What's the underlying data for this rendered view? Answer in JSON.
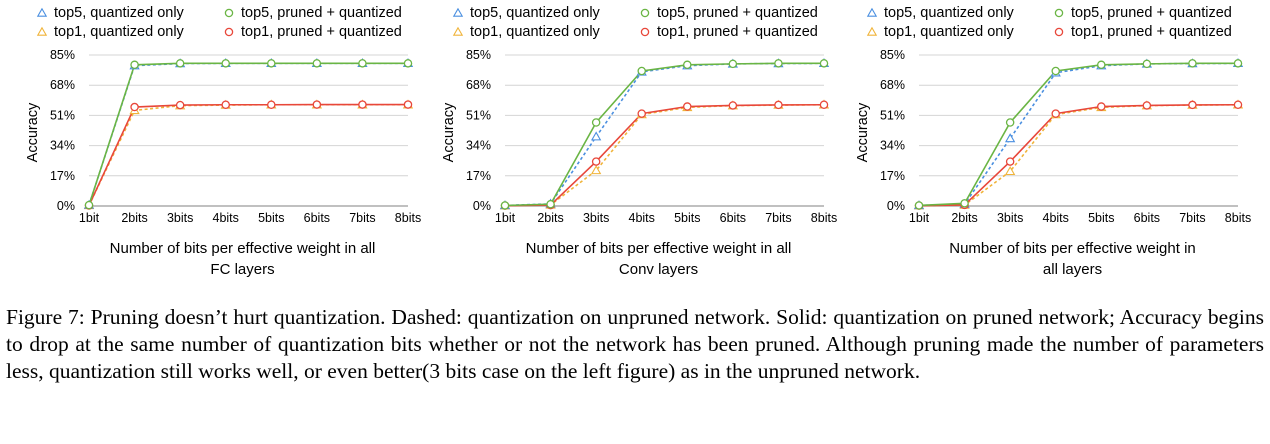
{
  "figure": {
    "caption": "Figure 7: Pruning doesn’t hurt quantization. Dashed: quantization on unpruned network. Solid: quantization on pruned network; Accuracy begins to drop at the same number of quantization bits whether or not the network has been pruned. Although pruning made the number of parameters less, quantization still works well, or even better(3 bits case on the left figure) as in the unpruned network."
  },
  "colors": {
    "top5": "#4fb0c6",
    "top5_quant": "#4a8fe0",
    "green": "#6ab544",
    "top1_quant": "#f0b43a",
    "red": "#e8473a",
    "axis": "#9a9a9a",
    "grid": "#d4d4d4"
  },
  "chart_data": [
    {
      "type": "line",
      "title": "",
      "xlabel": "Number of bits per effective weight in all FC layers",
      "xlabel_lines": [
        "Number of bits per effective weight in all",
        "FC layers"
      ],
      "ylabel": "Accuracy",
      "categories": [
        "1bit",
        "2bits",
        "3bits",
        "4bits",
        "5bits",
        "6bits",
        "7bits",
        "8bits"
      ],
      "yticks": [
        "0%",
        "17%",
        "34%",
        "51%",
        "68%",
        "85%"
      ],
      "ylim": [
        0,
        85
      ],
      "grid": true,
      "legend_position": "top",
      "series": [
        {
          "name": "top5, quantized only",
          "values": [
            0.5,
            79.0,
            80.2,
            80.3,
            80.3,
            80.3,
            80.3,
            80.3
          ],
          "style": "dashed",
          "marker": "triangle",
          "color_key": "top5_quant"
        },
        {
          "name": "top5, pruned + quantized",
          "values": [
            0.5,
            79.5,
            80.3,
            80.3,
            80.3,
            80.3,
            80.3,
            80.3
          ],
          "style": "solid",
          "marker": "circle",
          "color_key": "green"
        },
        {
          "name": "top1, quantized only",
          "values": [
            0.3,
            53.8,
            56.5,
            56.8,
            57.0,
            57.0,
            57.0,
            57.0
          ],
          "style": "dashed",
          "marker": "triangle",
          "color_key": "top1_quant"
        },
        {
          "name": "top1, pruned + quantized",
          "values": [
            0.3,
            55.7,
            56.8,
            57.0,
            57.0,
            57.1,
            57.1,
            57.1
          ],
          "style": "solid",
          "marker": "circle",
          "color_key": "red"
        }
      ]
    },
    {
      "type": "line",
      "title": "",
      "xlabel": "Number of bits per effective weight in all Conv layers",
      "xlabel_lines": [
        "Number of bits per effective weight in all",
        "Conv layers"
      ],
      "ylabel": "Accuracy",
      "categories": [
        "1bit",
        "2bits",
        "3bits",
        "4bits",
        "5bits",
        "6bits",
        "7bits",
        "8bits"
      ],
      "yticks": [
        "0%",
        "17%",
        "34%",
        "51%",
        "68%",
        "85%"
      ],
      "ylim": [
        0,
        85
      ],
      "grid": true,
      "legend_position": "top",
      "series": [
        {
          "name": "top5, quantized only",
          "values": [
            0.3,
            1.2,
            39.0,
            75.5,
            79.0,
            80.0,
            80.2,
            80.3
          ],
          "style": "dashed",
          "marker": "triangle",
          "color_key": "top5_quant"
        },
        {
          "name": "top5, pruned + quantized",
          "values": [
            0.3,
            1.0,
            47.0,
            76.0,
            79.5,
            80.0,
            80.3,
            80.3
          ],
          "style": "solid",
          "marker": "circle",
          "color_key": "green"
        },
        {
          "name": "top1, quantized only",
          "values": [
            0.2,
            0.6,
            20.0,
            51.5,
            55.5,
            56.5,
            56.8,
            57.0
          ],
          "style": "dashed",
          "marker": "triangle",
          "color_key": "top1_quant"
        },
        {
          "name": "top1, pruned + quantized",
          "values": [
            0.2,
            0.5,
            25.0,
            52.0,
            56.0,
            56.6,
            56.9,
            57.0
          ],
          "style": "solid",
          "marker": "circle",
          "color_key": "red"
        }
      ]
    },
    {
      "type": "line",
      "title": "",
      "xlabel": "Number of bits per effective weight in all layers",
      "xlabel_lines": [
        "Number of bits per effective weight in",
        "all layers"
      ],
      "ylabel": "Accuracy",
      "categories": [
        "1bit",
        "2bits",
        "3bits",
        "4bits",
        "5bits",
        "6bits",
        "7bits",
        "8bits"
      ],
      "yticks": [
        "0%",
        "17%",
        "34%",
        "51%",
        "68%",
        "85%"
      ],
      "ylim": [
        0,
        85
      ],
      "grid": true,
      "legend_position": "top",
      "series": [
        {
          "name": "top5, quantized only",
          "values": [
            0.3,
            1.0,
            38.0,
            75.0,
            79.0,
            80.0,
            80.2,
            80.3
          ],
          "style": "dashed",
          "marker": "triangle",
          "color_key": "top5_quant"
        },
        {
          "name": "top5, pruned + quantized",
          "values": [
            0.3,
            1.5,
            47.0,
            76.0,
            79.5,
            80.0,
            80.3,
            80.3
          ],
          "style": "solid",
          "marker": "circle",
          "color_key": "green"
        },
        {
          "name": "top1, quantized only",
          "values": [
            0.2,
            0.5,
            19.5,
            51.5,
            55.5,
            56.5,
            56.8,
            57.0
          ],
          "style": "dashed",
          "marker": "triangle",
          "color_key": "top1_quant"
        },
        {
          "name": "top1, pruned + quantized",
          "values": [
            0.2,
            0.6,
            25.0,
            52.0,
            56.0,
            56.6,
            56.9,
            57.0
          ],
          "style": "solid",
          "marker": "circle",
          "color_key": "red"
        }
      ]
    }
  ]
}
